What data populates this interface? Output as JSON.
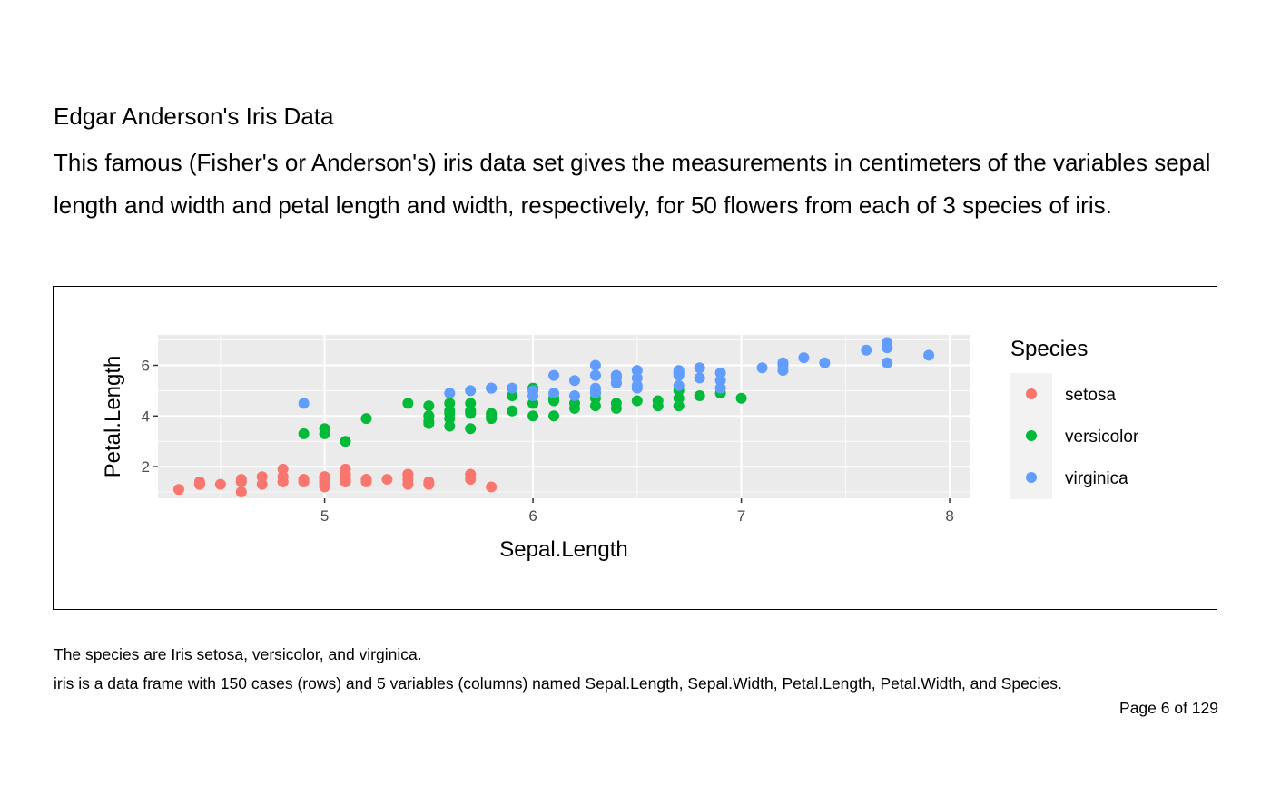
{
  "document": {
    "heading": "Edgar Anderson's Iris Data",
    "description": "This famous (Fisher's or Anderson's) iris data set gives the measurements in centimeters of the variables sepal length and width and petal length and width, respectively, for 50 flowers from each of 3 species of iris.",
    "note1": "The species are Iris setosa, versicolor, and virginica.",
    "note2": "iris is a data frame with 150 cases (rows) and 5 variables (columns) named Sepal.Length, Sepal.Width, Petal.Length, Petal.Width, and Species.",
    "page_number": "Page 6 of 129"
  },
  "chart_data": {
    "type": "scatter",
    "xlabel": "Sepal.Length",
    "ylabel": "Petal.Length",
    "xlim": [
      4.2,
      8.1
    ],
    "ylim": [
      0.75,
      7.2
    ],
    "xticks": [
      5,
      6,
      7,
      8
    ],
    "yticks": [
      2,
      4,
      6
    ],
    "grid": true,
    "legend": {
      "title": "Species",
      "position": "right"
    },
    "series": [
      {
        "name": "setosa",
        "color": "#F8766D",
        "x": [
          5.1,
          4.9,
          4.7,
          4.6,
          5.0,
          5.4,
          4.6,
          5.0,
          4.4,
          4.9,
          5.4,
          4.8,
          4.8,
          4.3,
          5.8,
          5.7,
          5.4,
          5.1,
          5.7,
          5.1,
          5.4,
          5.1,
          4.6,
          5.1,
          4.8,
          5.0,
          5.0,
          5.2,
          5.2,
          4.7,
          4.8,
          5.4,
          5.2,
          5.5,
          4.9,
          5.0,
          5.5,
          4.9,
          4.4,
          5.1,
          5.0,
          4.5,
          4.4,
          5.0,
          5.1,
          4.8,
          5.1,
          4.6,
          5.3,
          5.0
        ],
        "y": [
          1.4,
          1.4,
          1.3,
          1.5,
          1.4,
          1.7,
          1.4,
          1.5,
          1.4,
          1.5,
          1.5,
          1.6,
          1.4,
          1.1,
          1.2,
          1.5,
          1.3,
          1.4,
          1.7,
          1.5,
          1.7,
          1.5,
          1.0,
          1.7,
          1.9,
          1.6,
          1.6,
          1.5,
          1.4,
          1.6,
          1.6,
          1.5,
          1.5,
          1.4,
          1.5,
          1.2,
          1.3,
          1.4,
          1.3,
          1.5,
          1.3,
          1.3,
          1.3,
          1.6,
          1.9,
          1.4,
          1.6,
          1.4,
          1.5,
          1.4
        ]
      },
      {
        "name": "versicolor",
        "color": "#00BA38",
        "x": [
          7.0,
          6.4,
          6.9,
          5.5,
          6.5,
          5.7,
          6.3,
          4.9,
          6.6,
          5.2,
          5.0,
          5.9,
          6.0,
          6.1,
          5.6,
          6.7,
          5.6,
          5.8,
          6.2,
          5.6,
          5.9,
          6.1,
          6.3,
          6.1,
          6.4,
          6.6,
          6.8,
          6.7,
          6.0,
          5.7,
          5.5,
          5.5,
          5.8,
          6.0,
          5.4,
          6.0,
          6.7,
          6.3,
          5.6,
          5.5,
          5.5,
          6.1,
          5.8,
          5.0,
          5.6,
          5.7,
          5.7,
          6.2,
          5.1,
          5.7
        ],
        "y": [
          4.7,
          4.5,
          4.9,
          4.0,
          4.6,
          4.5,
          4.7,
          3.3,
          4.6,
          3.9,
          3.5,
          4.2,
          4.0,
          4.7,
          3.6,
          4.4,
          4.5,
          4.1,
          4.5,
          3.9,
          4.8,
          4.0,
          4.9,
          4.7,
          4.3,
          4.4,
          4.8,
          5.0,
          4.5,
          3.5,
          3.8,
          3.7,
          3.9,
          5.1,
          4.5,
          4.5,
          4.7,
          4.4,
          4.1,
          4.0,
          4.4,
          4.6,
          4.0,
          3.3,
          4.2,
          4.2,
          4.2,
          4.3,
          3.0,
          4.1
        ]
      },
      {
        "name": "virginica",
        "color": "#619CFF",
        "x": [
          6.3,
          5.8,
          7.1,
          6.3,
          6.5,
          7.6,
          4.9,
          7.3,
          6.7,
          7.2,
          6.5,
          6.4,
          6.8,
          5.7,
          5.8,
          6.4,
          6.5,
          7.7,
          7.7,
          6.0,
          6.9,
          5.6,
          7.7,
          6.3,
          6.7,
          7.2,
          6.2,
          6.1,
          6.4,
          7.2,
          7.4,
          7.9,
          6.4,
          6.3,
          6.1,
          7.7,
          6.3,
          6.4,
          6.0,
          6.9,
          6.7,
          6.9,
          5.8,
          6.8,
          6.7,
          6.7,
          6.3,
          6.5,
          6.2,
          5.9
        ],
        "y": [
          6.0,
          5.1,
          5.9,
          5.6,
          5.8,
          6.6,
          4.5,
          6.3,
          5.8,
          6.1,
          5.1,
          5.3,
          5.5,
          5.0,
          5.1,
          5.3,
          5.5,
          6.7,
          6.9,
          5.0,
          5.7,
          4.9,
          6.7,
          4.9,
          5.7,
          6.0,
          4.8,
          4.9,
          5.6,
          5.8,
          6.1,
          6.4,
          5.6,
          5.1,
          5.6,
          6.1,
          5.6,
          5.5,
          4.8,
          5.4,
          5.6,
          5.1,
          5.1,
          5.9,
          5.7,
          5.2,
          5.0,
          5.2,
          5.4,
          5.1
        ]
      }
    ]
  }
}
